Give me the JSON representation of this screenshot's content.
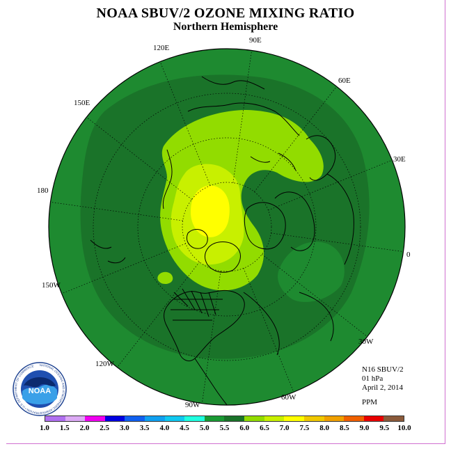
{
  "header": {
    "title": "NOAA SBUV/2 OZONE MIXING RATIO",
    "subtitle": "Northern Hemisphere"
  },
  "map": {
    "projection": "north-polar-stereographic",
    "center": "North Pole",
    "longitude_labels": [
      "90E",
      "60E",
      "30E",
      "0",
      "30W",
      "60W",
      "90W",
      "120W",
      "150W",
      "180",
      "150E",
      "120E"
    ],
    "colors": {
      "ocean_outer": "#1e8a30",
      "band_5_5_6": "#1a7329",
      "band_6_6_5": "#92dc00",
      "band_6_5_7": "#c8f000",
      "band_7_7_5": "#ffff00",
      "coast": "#000000"
    }
  },
  "info": {
    "instrument": "N16 SBUV/2",
    "level": "01 hPa",
    "date": "April 2, 2014",
    "units": "PPM"
  },
  "colorbar": {
    "colors": [
      "#b070f0",
      "#dcaaf5",
      "#f000f0",
      "#0000e0",
      "#1060f0",
      "#10a0f0",
      "#10c8f0",
      "#20ffe0",
      "#1a9a34",
      "#1a7329",
      "#92dc00",
      "#c8f000",
      "#ffff00",
      "#f0c800",
      "#f0a000",
      "#f06000",
      "#e80000",
      "#8b5a3a"
    ],
    "ticks": [
      "1.0",
      "1.5",
      "2.0",
      "2.5",
      "3.0",
      "3.5",
      "4.0",
      "4.5",
      "5.0",
      "5.5",
      "6.0",
      "6.5",
      "7.0",
      "7.5",
      "8.0",
      "8.5",
      "9.0",
      "9.5",
      "10.0"
    ]
  },
  "logo": {
    "text": "NOAA",
    "ring_text": "NATIONAL OCEANIC AND ATMOSPHERIC ADMINISTRATION • U.S. DEPARTMENT OF COMMERCE"
  }
}
